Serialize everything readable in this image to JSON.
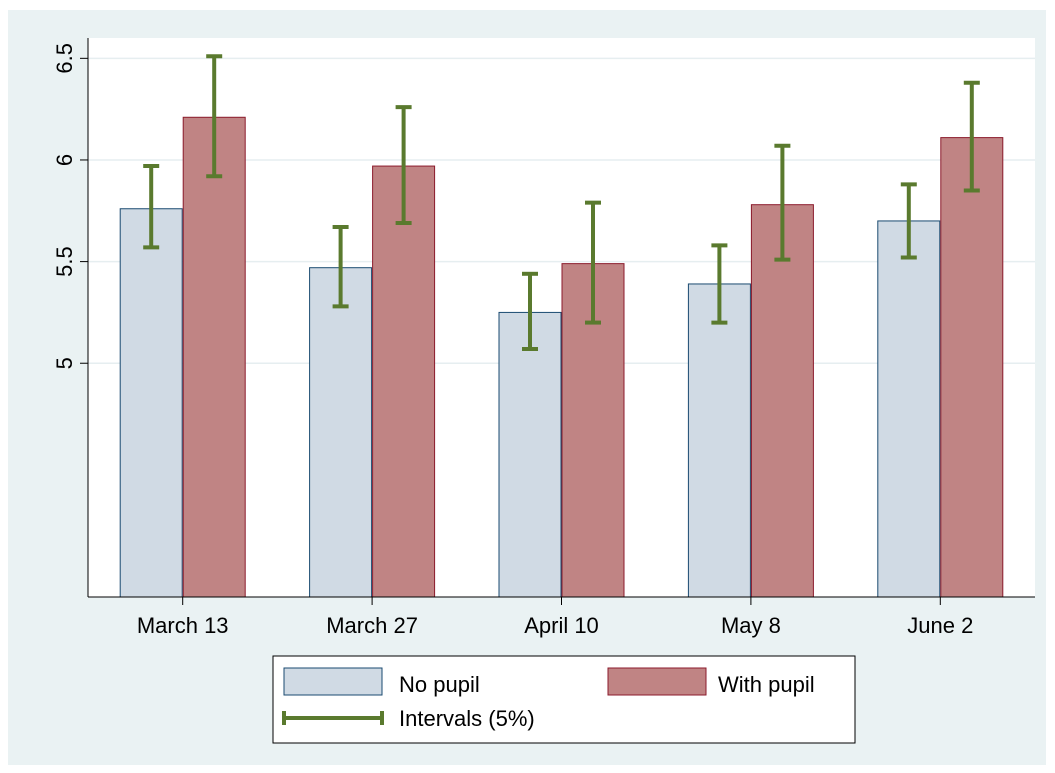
{
  "chart_data": {
    "type": "bar",
    "categories": [
      "March 13",
      "March 27",
      "April 10",
      "May 8",
      "June 2"
    ],
    "series": [
      {
        "name": "No pupil",
        "color": "#d0dae4",
        "edge": "#1a4a70",
        "values": [
          5.76,
          5.47,
          5.25,
          5.39,
          5.7
        ],
        "ci_low": [
          5.57,
          5.28,
          5.07,
          5.2,
          5.52
        ],
        "ci_high": [
          5.97,
          5.67,
          5.44,
          5.58,
          5.88
        ]
      },
      {
        "name": "With pupil",
        "color": "#c08484",
        "edge": "#8b1a2b",
        "values": [
          6.21,
          5.97,
          5.49,
          5.78,
          6.11
        ],
        "ci_low": [
          5.92,
          5.69,
          5.2,
          5.51,
          5.85
        ],
        "ci_high": [
          6.51,
          6.26,
          5.79,
          6.07,
          6.38
        ]
      }
    ],
    "interval_label": "Intervals (5%)",
    "interval_color": "#5a7a2e",
    "yticks": [
      "5",
      "5.5",
      "6",
      "6.5"
    ],
    "ylim": [
      3.85,
      6.6
    ],
    "baseline": 3.85,
    "grid": true,
    "legend_position": "bottom"
  }
}
